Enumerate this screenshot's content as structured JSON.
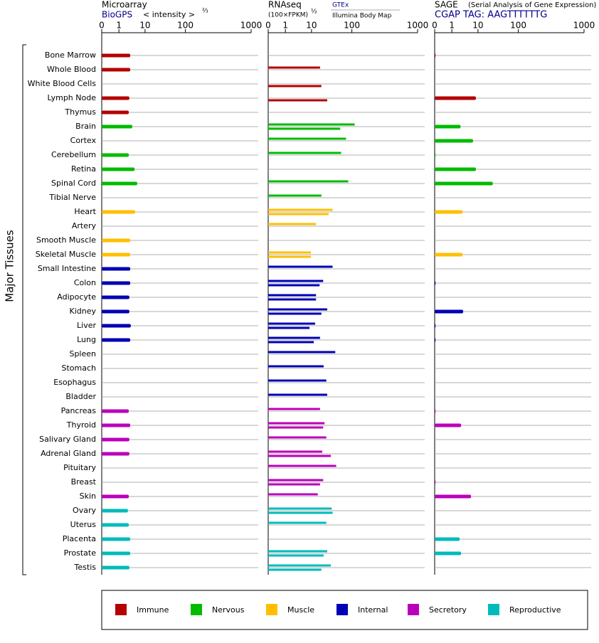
{
  "chart_data": {
    "type": "bar",
    "orientation": "horizontal",
    "y_label": "Major Tissues",
    "groups": [
      {
        "name": "Immune",
        "color": "#b40000",
        "tissues": [
          "Bone Marrow",
          "Whole Blood",
          "White Blood Cells",
          "Lymph Node",
          "Thymus"
        ]
      },
      {
        "name": "Nervous",
        "color": "#00bb00",
        "tissues": [
          "Brain",
          "Cortex",
          "Cerebellum",
          "Retina",
          "Spinal Cord",
          "Tibial Nerve"
        ]
      },
      {
        "name": "Muscle",
        "color": "#ffbf00",
        "tissues": [
          "Heart",
          "Artery",
          "Smooth Muscle",
          "Skeletal Muscle"
        ]
      },
      {
        "name": "Internal",
        "color": "#0000b4",
        "tissues": [
          "Small Intestine",
          "Colon",
          "Adipocyte",
          "Kidney",
          "Liver",
          "Lung",
          "Spleen",
          "Stomach",
          "Esophagus",
          "Bladder"
        ]
      },
      {
        "name": "Secretory",
        "color": "#bb00bb",
        "tissues": [
          "Pancreas",
          "Thyroid",
          "Salivary Gland",
          "Adrenal Gland",
          "Pituitary",
          "Breast",
          "Skin"
        ]
      },
      {
        "name": "Reproductive",
        "color": "#00bbbb",
        "tissues": [
          "Ovary",
          "Uterus",
          "Placenta",
          "Prostate",
          "Testis"
        ]
      }
    ],
    "panels": [
      {
        "title": "Microarray",
        "subtitle": "BioGPS",
        "axis_label": "< intensity >",
        "axis_label_exponent": "⅔",
        "xlim": [
          0,
          1000
        ],
        "xticks": [
          0,
          1,
          10,
          100,
          1000
        ],
        "series": [
          {
            "values": [
              4.9,
              4.9,
              null,
              4.6,
              4.4,
              5.6,
              null,
              4.4,
              6.4,
              7.3,
              null,
              6.6,
              null,
              4.9,
              4.9,
              4.9,
              4.9,
              4.6,
              4.6,
              5.1,
              4.9,
              null,
              null,
              null,
              null,
              4.4,
              4.9,
              4.6,
              4.6,
              null,
              null,
              4.4,
              4.1,
              4.4,
              4.9,
              4.9,
              4.6
            ]
          }
        ]
      },
      {
        "title": "RNAseq",
        "axis_label": "(100×FPKM)",
        "axis_label_exponent": "½",
        "xlim": [
          0,
          1000
        ],
        "xticks": [
          0,
          1,
          10,
          100,
          1000
        ],
        "series": [
          {
            "name": "GTEx",
            "values": [
              null,
              29,
              null,
              null,
              null,
              139,
              87,
              76,
              null,
              92,
              32,
              57,
              20,
              null,
              9.8,
              57,
              36,
              20,
              45,
              18,
              29,
              63,
              37,
              43,
              45,
              29,
              39,
              43,
              34,
              65,
              36,
              24,
              55,
              43,
              null,
              45,
              53
            ]
          },
          {
            "name": "Illumina Body Map",
            "values": [
              null,
              null,
              32,
              45,
              null,
              74,
              null,
              null,
              null,
              null,
              null,
              48,
              null,
              null,
              9.8,
              null,
              28,
              20,
              32,
              9.3,
              15,
              null,
              null,
              null,
              null,
              null,
              36,
              null,
              53,
              null,
              29,
              null,
              57,
              null,
              null,
              37,
              32
            ]
          }
        ]
      },
      {
        "title": "SAGE",
        "subtitle": "(Serial Analysis of Gene Expression)",
        "tag": "CGAP TAG: AAGTTTTTTG",
        "xlim": [
          0,
          1000
        ],
        "xticks": [
          0,
          1,
          10,
          100,
          1000
        ],
        "series": [
          {
            "values": [
              0.05,
              null,
              null,
              9.3,
              null,
              4.0,
              8.3,
              0.05,
              9.3,
              43,
              null,
              4.7,
              null,
              null,
              4.7,
              null,
              0.05,
              null,
              4.9,
              0.05,
              0.05,
              null,
              null,
              null,
              null,
              0.05,
              4.2,
              null,
              null,
              null,
              0.05,
              7.6,
              null,
              null,
              3.7,
              4.2,
              null
            ]
          }
        ]
      }
    ]
  }
}
